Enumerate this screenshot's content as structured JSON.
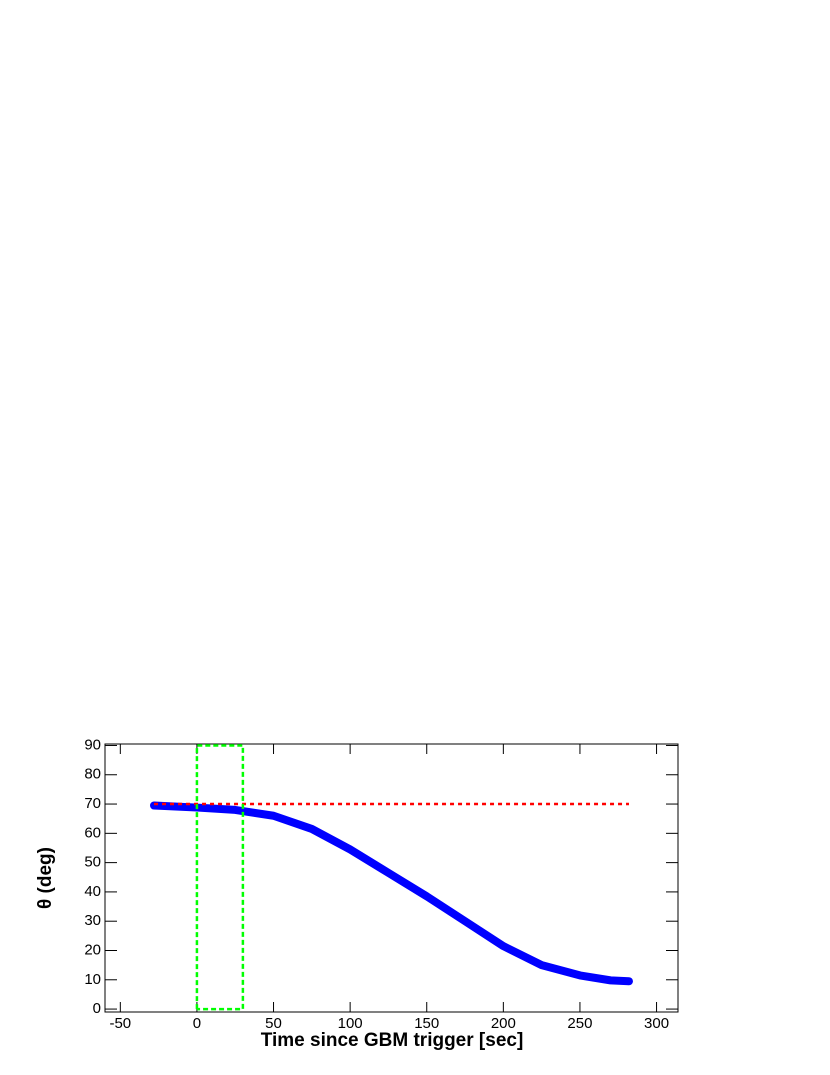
{
  "chart_data": {
    "type": "line",
    "xlabel": "Time since GBM trigger [sec]",
    "ylabel": "θ (deg)",
    "xlim": [
      -60,
      314
    ],
    "ylim": [
      -1,
      90.5
    ],
    "xticks": [
      -50,
      0,
      50,
      100,
      150,
      200,
      250,
      300
    ],
    "yticks": [
      0,
      10,
      20,
      30,
      40,
      50,
      60,
      70,
      80,
      90
    ],
    "series": [
      {
        "color": "#0000ff",
        "style": "solid",
        "x": [
          -28,
          0,
          25,
          50,
          75,
          100,
          125,
          150,
          175,
          200,
          225,
          250,
          270,
          282
        ],
        "values": [
          69.5,
          68.8,
          68,
          66,
          61.5,
          54.5,
          46.5,
          38.5,
          30,
          21.5,
          15,
          11.5,
          9.8,
          9.5
        ]
      },
      {
        "color": "#ff0000",
        "style": "dotted",
        "x": [
          -28,
          282
        ],
        "values": [
          70,
          70
        ]
      },
      {
        "color": "#00ff00",
        "style": "dashed",
        "x": [
          0,
          0,
          30,
          30,
          0
        ],
        "values": [
          0,
          90,
          90,
          0,
          0
        ]
      }
    ]
  }
}
